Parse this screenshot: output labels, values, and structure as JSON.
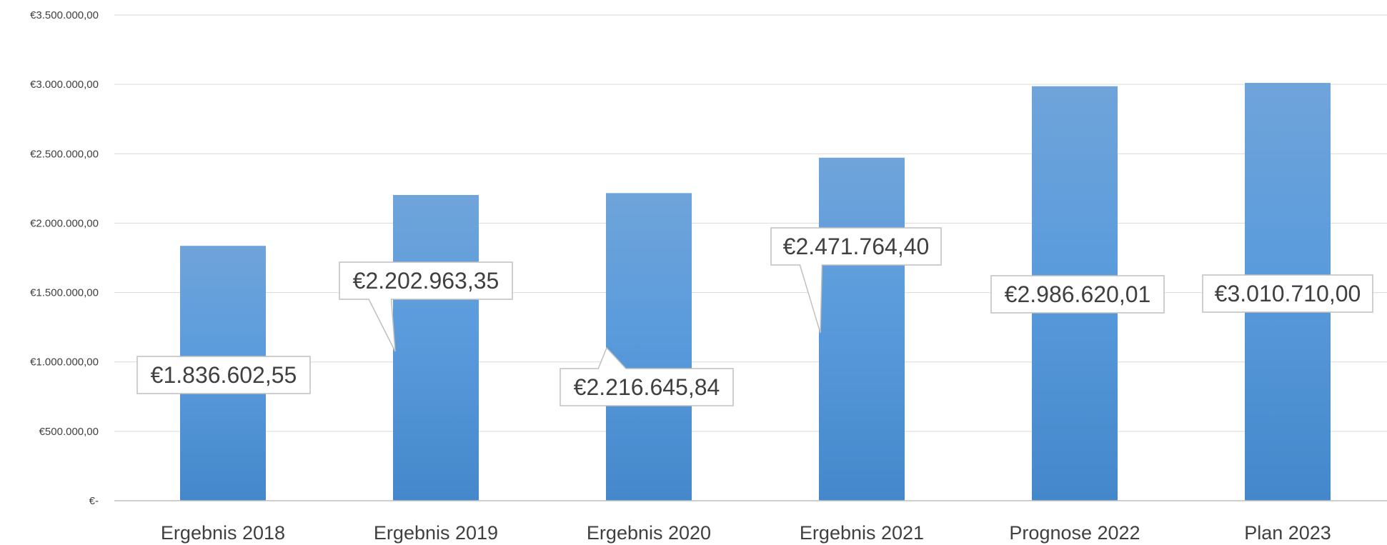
{
  "chart_data": {
    "type": "bar",
    "categories": [
      "Ergebnis 2018",
      "Ergebnis 2019",
      "Ergebnis 2020",
      "Ergebnis 2021",
      "Prognose 2022",
      "Plan 2023"
    ],
    "values": [
      1836602.55,
      2202963.35,
      2216645.84,
      2471764.4,
      2986620.01,
      3010710.0
    ],
    "data_labels": [
      "€1.836.602,55",
      "€2.202.963,35",
      "€2.216.645,84",
      "€2.471.764,40",
      "€2.986.620,01",
      "€3.010.710,00"
    ],
    "y_ticks": [
      {
        "value": 0,
        "label": "€-"
      },
      {
        "value": 500000,
        "label": "€500.000,00"
      },
      {
        "value": 1000000,
        "label": "€1.000.000,00"
      },
      {
        "value": 1500000,
        "label": "€1.500.000,00"
      },
      {
        "value": 2000000,
        "label": "€2.000.000,00"
      },
      {
        "value": 2500000,
        "label": "€2.500.000,00"
      },
      {
        "value": 3000000,
        "label": "€3.000.000,00"
      },
      {
        "value": 3500000,
        "label": "€3.500.000,00"
      }
    ],
    "ylim": [
      0,
      3500000
    ],
    "title": "",
    "xlabel": "",
    "ylabel": "",
    "grid": true,
    "legend": "none",
    "colors": {
      "bar_top": "#6FA4DA",
      "bar_mid": "#5A9BDC",
      "bar_bottom": "#4488CB",
      "grid": "#D9D9D9",
      "axis": "#BFBFBF",
      "text": "#404040",
      "label_border": "#BFBFBF"
    }
  }
}
